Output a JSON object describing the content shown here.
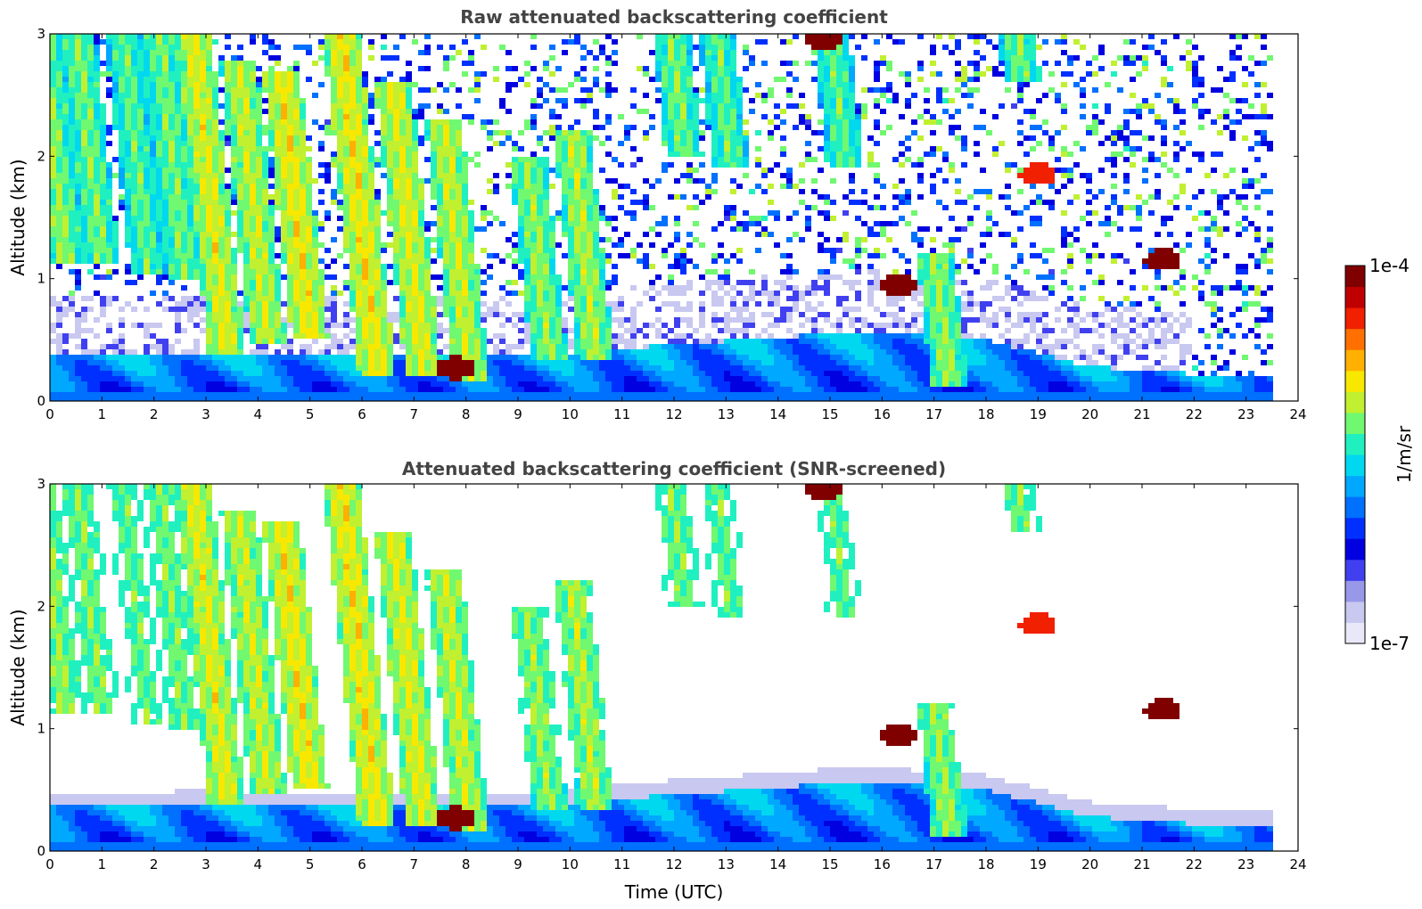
{
  "chart_data": [
    {
      "type": "heatmap",
      "title": "Raw attenuated backscattering coefficient",
      "xlabel": "",
      "ylabel": "Altitude (km)",
      "xlim": [
        0,
        24
      ],
      "ylim": [
        0,
        3
      ],
      "xticks": [
        "0",
        "1",
        "2",
        "3",
        "4",
        "5",
        "6",
        "7",
        "8",
        "9",
        "10",
        "11",
        "12",
        "13",
        "14",
        "15",
        "16",
        "17",
        "18",
        "19",
        "20",
        "21",
        "22",
        "23",
        "24"
      ],
      "yticks": [
        "0",
        "1",
        "2",
        "3"
      ],
      "screened": false,
      "boundary_layer_top": [
        [
          0,
          0.36
        ],
        [
          3,
          0.37
        ],
        [
          6,
          0.36
        ],
        [
          9,
          0.36
        ],
        [
          12,
          0.46
        ],
        [
          15,
          0.55
        ],
        [
          16,
          0.56
        ],
        [
          18,
          0.5
        ],
        [
          20,
          0.28
        ],
        [
          22,
          0.22
        ],
        [
          23.5,
          0.2
        ]
      ],
      "plumes": [
        {
          "t": 0.3,
          "bottom": 1.1,
          "top": 3.0,
          "level": 0.62
        },
        {
          "t": 1.0,
          "bottom": 1.1,
          "top": 3.0,
          "level": 0.6
        },
        {
          "t": 1.9,
          "bottom": 1.05,
          "top": 3.0,
          "level": 0.58
        },
        {
          "t": 2.6,
          "bottom": 1.0,
          "top": 3.0,
          "level": 0.6
        },
        {
          "t": 3.4,
          "bottom": 0.4,
          "top": 3.0,
          "level": 0.68
        },
        {
          "t": 4.2,
          "bottom": 0.45,
          "top": 2.8,
          "level": 0.66
        },
        {
          "t": 5.0,
          "bottom": 0.5,
          "top": 2.7,
          "level": 0.7
        },
        {
          "t": 6.3,
          "bottom": 0.2,
          "top": 3.0,
          "level": 0.7
        },
        {
          "t": 7.2,
          "bottom": 0.2,
          "top": 2.6,
          "level": 0.68
        },
        {
          "t": 8.1,
          "bottom": 0.15,
          "top": 2.3,
          "level": 0.66
        },
        {
          "t": 9.6,
          "bottom": 0.35,
          "top": 2.0,
          "level": 0.62
        },
        {
          "t": 10.5,
          "bottom": 0.35,
          "top": 2.2,
          "level": 0.64
        },
        {
          "t": 12.2,
          "bottom": 2.0,
          "top": 3.0,
          "level": 0.6
        },
        {
          "t": 13.1,
          "bottom": 1.9,
          "top": 3.0,
          "level": 0.58
        },
        {
          "t": 15.3,
          "bottom": 1.9,
          "top": 3.0,
          "level": 0.58
        },
        {
          "t": 17.3,
          "bottom": 0.1,
          "top": 1.2,
          "level": 0.62
        },
        {
          "t": 18.7,
          "bottom": 2.6,
          "top": 3.0,
          "level": 0.6
        }
      ],
      "features": [
        {
          "t": 16.3,
          "alt": 0.95,
          "kind": "cloud",
          "level": 0.97
        },
        {
          "t": 14.85,
          "alt": 2.95,
          "kind": "cloud",
          "level": 0.98
        },
        {
          "t": 21.4,
          "alt": 1.15,
          "kind": "cloud",
          "level": 0.95
        },
        {
          "t": 19.0,
          "alt": 1.85,
          "kind": "cloud",
          "level": 0.85
        },
        {
          "t": 7.8,
          "alt": 0.27,
          "kind": "cloud",
          "level": 0.95
        }
      ]
    },
    {
      "type": "heatmap",
      "title": "Attenuated backscattering coefficient (SNR-screened)",
      "xlabel": "Time (UTC)",
      "ylabel": "Altitude (km)",
      "xlim": [
        0,
        24
      ],
      "ylim": [
        0,
        3
      ],
      "xticks": [
        "0",
        "1",
        "2",
        "3",
        "4",
        "5",
        "6",
        "7",
        "8",
        "9",
        "10",
        "11",
        "12",
        "13",
        "14",
        "15",
        "16",
        "17",
        "18",
        "19",
        "20",
        "21",
        "22",
        "23",
        "24"
      ],
      "yticks": [
        "0",
        "1",
        "2",
        "3"
      ],
      "screened": true
    }
  ],
  "colorbar": {
    "label": "1/m/sr",
    "min_label": "1e-7",
    "max_label": "1e-4",
    "scale": "log",
    "colors": [
      "#e8e8f8",
      "#c8c8f0",
      "#9898e8",
      "#4040f0",
      "#0000e0",
      "#0030ff",
      "#0070ff",
      "#00a8ff",
      "#00d8f0",
      "#20f0c0",
      "#70f870",
      "#c0f030",
      "#f8e800",
      "#ffb000",
      "#ff7000",
      "#f02000",
      "#c00000",
      "#800000"
    ]
  }
}
